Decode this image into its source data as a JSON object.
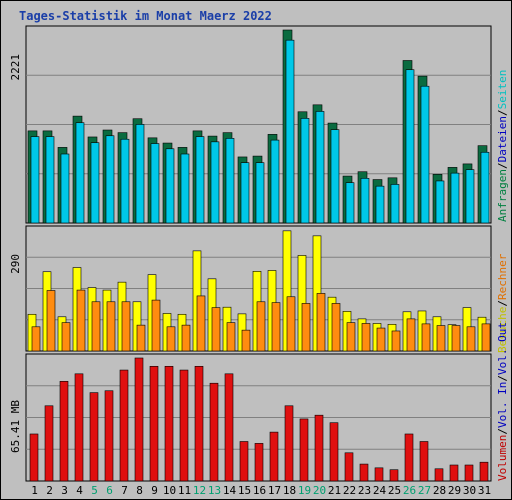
{
  "title": "Tages-Statistik im Monat Maerz 2022",
  "colors": {
    "hits": "#0a6b40",
    "files": "#00c8e8",
    "pages": "#00c8e8",
    "visits": "#ffff00",
    "sites": "#ff8c10",
    "kbytes": "#e01010",
    "axis_label": "#1a3ea8"
  },
  "legend_top": [
    {
      "text": "Anfragen",
      "color": "#008040"
    },
    {
      "text": "/",
      "color": "#000000"
    },
    {
      "text": "Dateien",
      "color": "#0000c0"
    },
    {
      "text": "/",
      "color": "#000000"
    },
    {
      "text": "Seiten",
      "color": "#00c0c0"
    }
  ],
  "legend_mid": [
    {
      "text": "Besuche",
      "color": "#c0c000"
    },
    {
      "text": "/",
      "color": "#000000"
    },
    {
      "text": "Rechner",
      "color": "#e07000"
    }
  ],
  "legend_bot": [
    {
      "text": "Volumen",
      "color": "#c00000"
    },
    {
      "text": "/",
      "color": "#000000"
    },
    {
      "text": "Vol. In",
      "color": "#0000c0"
    },
    {
      "text": "/",
      "color": "#000000"
    },
    {
      "text": "Vol. Out",
      "color": "#0000c0"
    }
  ],
  "chart_data": [
    {
      "type": "bar",
      "name": "top",
      "ymax_label": "2221",
      "ylim": [
        0,
        2221
      ],
      "categories": [
        "1",
        "2",
        "3",
        "4",
        "5",
        "6",
        "7",
        "8",
        "9",
        "10",
        "11",
        "12",
        "13",
        "14",
        "15",
        "16",
        "17",
        "18",
        "19",
        "20",
        "21",
        "22",
        "23",
        "24",
        "25",
        "26",
        "27",
        "28",
        "29",
        "30",
        "31"
      ],
      "weekend_days": [
        "5",
        "6",
        "12",
        "13",
        "19",
        "20",
        "26",
        "27"
      ],
      "series": [
        {
          "name": "Anfragen",
          "values": [
            1060,
            1060,
            870,
            1230,
            990,
            1070,
            1040,
            1200,
            980,
            920,
            870,
            1060,
            1000,
            1040,
            760,
            770,
            1020,
            2221,
            1280,
            1360,
            1150,
            540,
            590,
            500,
            520,
            1870,
            1690,
            560,
            640,
            680,
            890
          ]
        },
        {
          "name": "Seiten",
          "values": [
            1040,
            1040,
            840,
            1200,
            970,
            1050,
            1010,
            1180,
            960,
            900,
            840,
            1040,
            980,
            1020,
            740,
            740,
            1000,
            2150,
            1250,
            1330,
            1120,
            510,
            560,
            470,
            490,
            1810,
            1620,
            530,
            620,
            660,
            860
          ]
        }
      ]
    },
    {
      "type": "bar",
      "name": "middle",
      "ymax_label": "290",
      "ylim": [
        0,
        290
      ],
      "series": [
        {
          "name": "Besuche",
          "values": [
            88,
            190,
            82,
            200,
            152,
            146,
            165,
            118,
            183,
            90,
            88,
            240,
            173,
            105,
            89,
            191,
            193,
            288,
            229,
            276,
            129,
            95,
            77,
            66,
            64,
            94,
            96,
            82,
            63,
            104,
            81
          ]
        },
        {
          "name": "Rechner",
          "values": [
            58,
            145,
            68,
            146,
            118,
            118,
            118,
            62,
            122,
            58,
            62,
            132,
            104,
            68,
            50,
            118,
            116,
            130,
            114,
            138,
            114,
            68,
            66,
            55,
            48,
            77,
            65,
            61,
            61,
            58,
            65
          ]
        }
      ]
    },
    {
      "type": "bar",
      "name": "bottom",
      "ymax_label": "65.41 MB",
      "ylim": [
        0,
        65.41
      ],
      "series": [
        {
          "name": "Volumen",
          "values": [
            25,
            40,
            53,
            57,
            47,
            48,
            59,
            65.41,
            61,
            61,
            59,
            61,
            52,
            57,
            21,
            20,
            26,
            40,
            33,
            35,
            31,
            15,
            9,
            7,
            6,
            25,
            21,
            6.5,
            8.5,
            8.5,
            10
          ]
        }
      ]
    }
  ]
}
